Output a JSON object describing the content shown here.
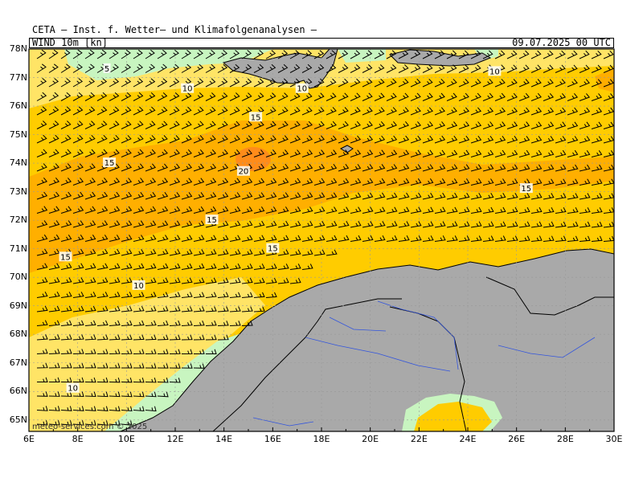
{
  "header": {
    "title": "CETA — Inst. f. Wetter— und Klimafolgenanalysen —",
    "parameter": "WIND 10m [kn]",
    "datetime": "09.07.2025 00 UTC"
  },
  "credit": "meteo-services.com © 2025",
  "axes": {
    "lat_labels": [
      "65N",
      "66N",
      "67N",
      "68N",
      "69N",
      "70N",
      "71N",
      "72N",
      "73N",
      "74N",
      "75N",
      "76N",
      "77N",
      "78N"
    ],
    "lon_labels": [
      "6E",
      "8E",
      "10E",
      "12E",
      "14E",
      "16E",
      "18E",
      "20E",
      "22E",
      "24E",
      "26E",
      "28E",
      "30E"
    ],
    "lat_range": [
      64.6,
      78
    ],
    "lon_range": [
      6,
      30
    ]
  },
  "legend_colors": {
    "under_10kn": "#c8f5c0",
    "10_15kn": "#ffe466",
    "15_20kn": "#ffcc00",
    "20_25kn": "#ffa500",
    "over_25kn": "#ff8c1a",
    "land": "#a9a9a9",
    "rivers": "#3355dd"
  },
  "contours": [
    {
      "label": "5",
      "lon": 9.2,
      "lat": 77.3
    },
    {
      "label": "10",
      "lon": 12.5,
      "lat": 76.6
    },
    {
      "label": "10",
      "lon": 17.2,
      "lat": 76.6
    },
    {
      "label": "10",
      "lon": 25.1,
      "lat": 77.2
    },
    {
      "label": "15",
      "lon": 15.3,
      "lat": 75.6
    },
    {
      "label": "15",
      "lon": 9.3,
      "lat": 74.0
    },
    {
      "label": "20",
      "lon": 14.8,
      "lat": 73.7
    },
    {
      "label": "15",
      "lon": 26.4,
      "lat": 73.1
    },
    {
      "label": "15",
      "lon": 13.5,
      "lat": 72.0
    },
    {
      "label": "15",
      "lon": 16.0,
      "lat": 71.0
    },
    {
      "label": "15",
      "lon": 7.5,
      "lat": 70.7
    },
    {
      "label": "10",
      "lon": 10.5,
      "lat": 69.7
    },
    {
      "label": "10",
      "lon": 7.8,
      "lat": 66.1
    }
  ]
}
